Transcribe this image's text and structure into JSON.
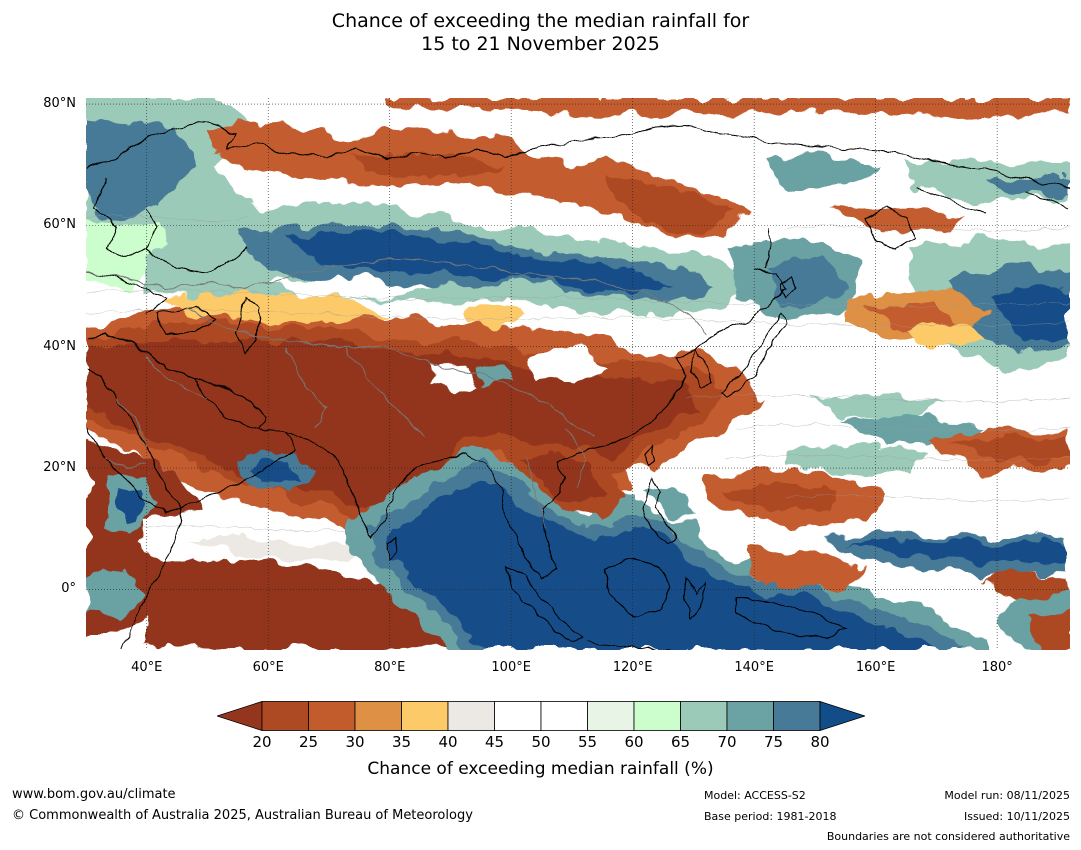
{
  "title_line1": "Chance of exceeding the median rainfall for",
  "title_line2": "15 to 21 November 2025",
  "map": {
    "extent": {
      "lon_min": 30,
      "lon_max": 192,
      "lat_min": -10,
      "lat_max": 81
    },
    "lat_labels": [
      {
        "lat": 80,
        "text": "80°N"
      },
      {
        "lat": 60,
        "text": "60°N"
      },
      {
        "lat": 40,
        "text": "40°N"
      },
      {
        "lat": 20,
        "text": "20°N"
      },
      {
        "lat": 0,
        "text": "0°"
      }
    ],
    "lon_labels": [
      {
        "lon": 40,
        "text": "40°E"
      },
      {
        "lon": 60,
        "text": "60°E"
      },
      {
        "lon": 80,
        "text": "80°E"
      },
      {
        "lon": 100,
        "text": "100°E"
      },
      {
        "lon": 120,
        "text": "120°E"
      },
      {
        "lon": 140,
        "text": "140°E"
      },
      {
        "lon": 160,
        "text": "160°E"
      },
      {
        "lon": 180,
        "text": "180°"
      }
    ]
  },
  "colorbar": {
    "ticks": [
      "20",
      "25",
      "30",
      "35",
      "40",
      "45",
      "50",
      "55",
      "60",
      "65",
      "70",
      "75",
      "80"
    ],
    "colors": [
      "#ad4a24",
      "#c35c2d",
      "#de9045",
      "#fdca69",
      "#ece9e4",
      "#ffffff",
      "#ffffff",
      "#e8f5e6",
      "#ccfdcc",
      "#9ccab8",
      "#6ba2a4",
      "#477a97"
    ],
    "under_color": "#93361d",
    "over_color": "#124d89",
    "label": "Chance of exceeding median rainfall (%)"
  },
  "footer": {
    "url": "www.bom.gov.au/climate",
    "copyright": "© Commonwealth of Australia 2025, Australian Bureau of Meteorology",
    "model": "Model: ACCESS-S2",
    "base_period": "Base period: 1981-2018",
    "model_run": "Model run: 08/11/2025",
    "issued": "Issued: 10/11/2025",
    "boundaries_note": "Boundaries are not considered authoritative"
  }
}
